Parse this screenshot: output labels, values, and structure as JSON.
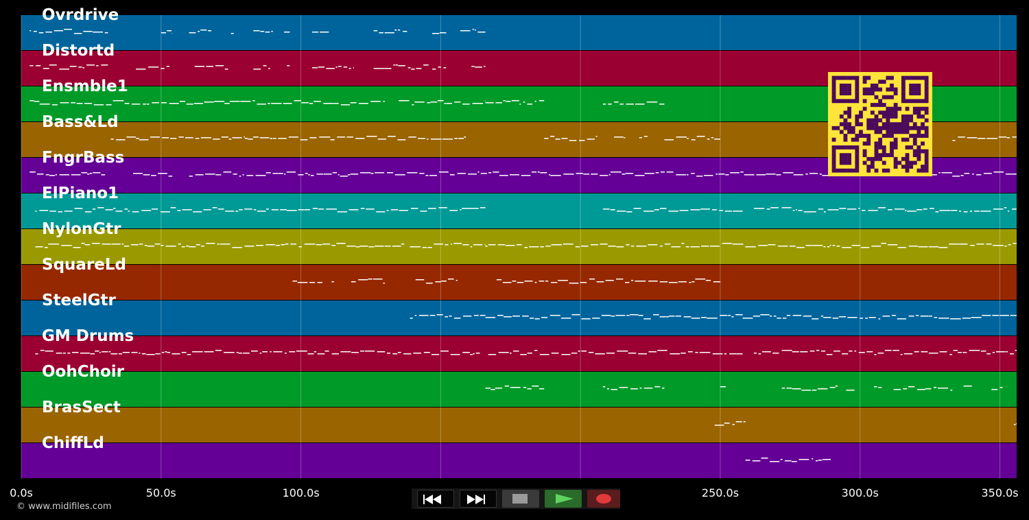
{
  "tracks": [
    {
      "name": "Ovrdrive",
      "color": "#00649c"
    },
    {
      "name": "Distortd",
      "color": "#9a0032"
    },
    {
      "name": "Ensmble1",
      "color": "#009a28"
    },
    {
      "name": "Bass&Ld",
      "color": "#9a6400"
    },
    {
      "name": "FngrBass",
      "color": "#640096"
    },
    {
      "name": "ElPiano1",
      "color": "#009a96"
    },
    {
      "name": "NylonGtr",
      "color": "#9a9a00"
    },
    {
      "name": "SquareLd",
      "color": "#962800"
    },
    {
      "name": "SteelGtr",
      "color": "#00649c"
    },
    {
      "name": "GM Drums",
      "color": "#9a0032"
    },
    {
      "name": "OohChoir",
      "color": "#009a28"
    },
    {
      "name": "BrasSect",
      "color": "#9a6400"
    },
    {
      "name": "ChiffLd",
      "color": "#640096"
    }
  ],
  "time_axis": {
    "ticks": [
      {
        "value": 0,
        "label": "0.0s"
      },
      {
        "value": 50,
        "label": "50.0s"
      },
      {
        "value": 100,
        "label": "100.0s"
      },
      {
        "value": 150,
        "label": "150.0s"
      },
      {
        "value": 200,
        "label": "200.0s"
      },
      {
        "value": 250,
        "label": "250.0s"
      },
      {
        "value": 300,
        "label": "300.0s"
      },
      {
        "value": 350,
        "label": "350.0s"
      }
    ],
    "max": 356
  },
  "copyright": "© www.midifiles.com",
  "transport": {
    "buttons": [
      {
        "name": "rewind-button",
        "icon": "rewind-icon"
      },
      {
        "name": "fast-forward-button",
        "icon": "fast-forward-icon"
      },
      {
        "name": "stop-button",
        "icon": "stop-icon",
        "color": "#9a9a9a"
      },
      {
        "name": "play-button",
        "icon": "play-icon",
        "color": "#5fd35f"
      },
      {
        "name": "record-button",
        "icon": "record-icon",
        "color": "#e03a3a"
      }
    ]
  },
  "qr_code": {
    "icon": "qr-code-icon",
    "fg": "#4b0a5a",
    "bg": "#ffe43a"
  },
  "note_segments": [
    [
      [
        3,
        31
      ],
      [
        50,
        54
      ],
      [
        60,
        68
      ],
      [
        75,
        76
      ],
      [
        83,
        90
      ],
      [
        94,
        96
      ],
      [
        104,
        110
      ],
      [
        126,
        138
      ],
      [
        147,
        152
      ],
      [
        157,
        166
      ]
    ],
    [
      [
        3,
        31
      ],
      [
        41,
        53
      ],
      [
        62,
        74
      ],
      [
        83,
        89
      ],
      [
        95,
        96
      ],
      [
        104,
        119
      ],
      [
        126,
        146
      ],
      [
        147,
        152
      ],
      [
        161,
        166
      ]
    ],
    [
      [
        3,
        130
      ],
      [
        135,
        166
      ],
      [
        166,
        187
      ],
      [
        208,
        230
      ]
    ],
    [
      [
        32,
        80
      ],
      [
        80,
        159
      ],
      [
        187,
        206
      ],
      [
        212,
        216
      ],
      [
        221,
        224
      ],
      [
        230,
        250
      ],
      [
        333,
        356
      ]
    ],
    [
      [
        3,
        30
      ],
      [
        40,
        54
      ],
      [
        60,
        356
      ]
    ],
    [
      [
        5,
        166
      ],
      [
        208,
        258
      ],
      [
        262,
        271
      ],
      [
        272,
        356
      ]
    ],
    [
      [
        5,
        60
      ],
      [
        60,
        137
      ],
      [
        139,
        166
      ],
      [
        166,
        356
      ]
    ],
    [
      [
        97,
        108
      ],
      [
        111,
        112
      ],
      [
        118,
        130
      ],
      [
        141,
        156
      ],
      [
        170,
        250
      ]
    ],
    [
      [
        139,
        166
      ],
      [
        166,
        258
      ],
      [
        258,
        356
      ]
    ],
    [
      [
        5,
        32
      ],
      [
        32,
        164
      ],
      [
        167,
        258
      ],
      [
        262,
        271
      ],
      [
        272,
        356
      ]
    ],
    [
      [
        166,
        187
      ],
      [
        208,
        230
      ],
      [
        250,
        252
      ],
      [
        272,
        292
      ],
      [
        295,
        298
      ],
      [
        305,
        308
      ],
      [
        312,
        333
      ],
      [
        337,
        340
      ],
      [
        347,
        351
      ]
    ],
    [
      [
        248,
        259
      ],
      [
        355,
        356
      ]
    ],
    [
      [
        259,
        290
      ]
    ]
  ]
}
